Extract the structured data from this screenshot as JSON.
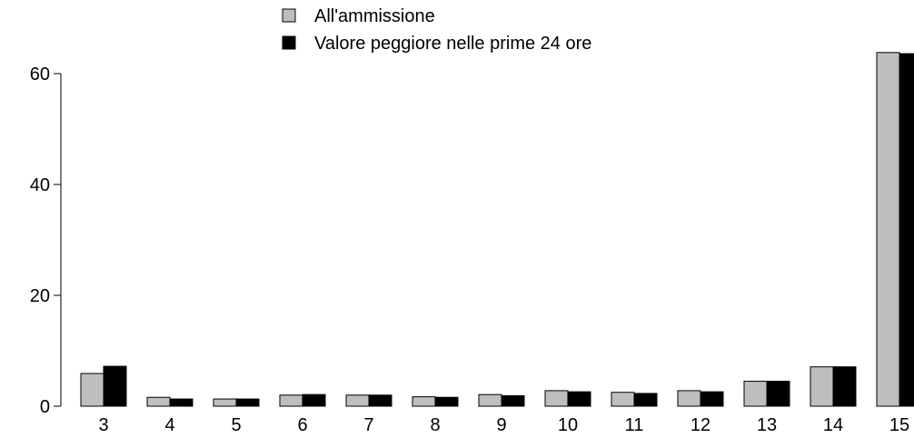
{
  "chart_data": {
    "type": "bar",
    "categories": [
      "3",
      "4",
      "5",
      "6",
      "7",
      "8",
      "9",
      "10",
      "11",
      "12",
      "13",
      "14",
      "15"
    ],
    "series": [
      {
        "name": "All'ammissione",
        "color": "#bebebe",
        "values": [
          5.9,
          1.6,
          1.3,
          2.0,
          2.0,
          1.7,
          2.1,
          2.8,
          2.5,
          2.8,
          4.5,
          7.1,
          63.8
        ]
      },
      {
        "name": "Valore peggiore nelle prime 24 ore",
        "color": "#000000",
        "values": [
          7.2,
          1.3,
          1.3,
          2.1,
          2.0,
          1.6,
          1.9,
          2.6,
          2.3,
          2.6,
          4.5,
          7.1,
          63.6
        ]
      }
    ],
    "y_ticks": [
      0,
      20,
      40,
      60
    ],
    "ylim": [
      0,
      64
    ],
    "legend_position": "top",
    "grid": false
  }
}
